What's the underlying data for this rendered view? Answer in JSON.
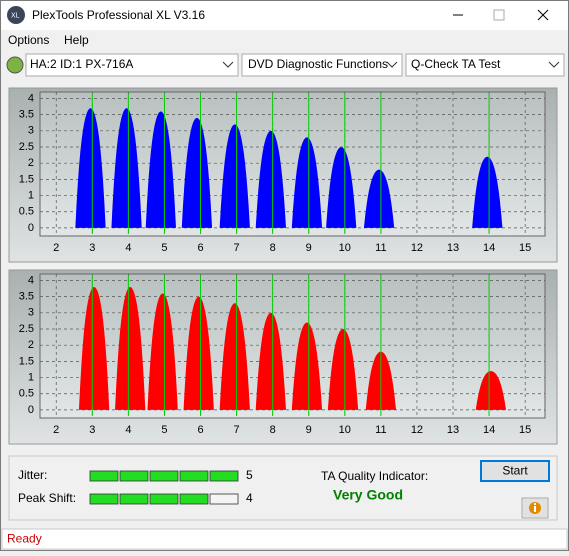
{
  "window": {
    "title": "PlexTools Professional XL V3.16"
  },
  "menu": [
    "Options",
    "Help"
  ],
  "toolbar": [
    "HA:2 ID:1  PX-716A",
    "DVD Diagnostic Functions",
    "Q-Check TA Test"
  ],
  "chart_data": [
    {
      "type": "bar",
      "color": "#0000ff",
      "x": [
        2.95,
        3.95,
        4.9,
        5.9,
        6.95,
        7.95,
        8.95,
        9.9,
        10.95,
        13.95
      ],
      "values": [
        3.7,
        3.7,
        3.6,
        3.4,
        3.2,
        3.0,
        2.8,
        2.5,
        1.8,
        2.2
      ],
      "markers": [
        3,
        4,
        5,
        6,
        7,
        8,
        9,
        10,
        11,
        14
      ],
      "marker_color": "#00d000",
      "xlim": [
        1.55,
        15.55
      ],
      "ylim": [
        -0.25,
        4.2
      ],
      "xticks": [
        2,
        3,
        4,
        5,
        6,
        7,
        8,
        9,
        10,
        11,
        12,
        13,
        14,
        15
      ],
      "yticks": [
        0,
        0.5,
        1,
        1.5,
        2,
        2.5,
        3,
        3.5,
        4
      ],
      "grid": true
    },
    {
      "type": "bar",
      "color": "#ff0000",
      "x": [
        3.05,
        4.05,
        4.95,
        5.95,
        6.95,
        7.95,
        8.95,
        9.95,
        11.0,
        14.05
      ],
      "values": [
        3.8,
        3.8,
        3.6,
        3.5,
        3.3,
        3.0,
        2.7,
        2.5,
        1.8,
        1.2
      ],
      "markers": [
        3,
        4,
        5,
        6,
        7,
        8,
        9,
        10,
        11,
        14
      ],
      "marker_color": "#00d000",
      "xlim": [
        1.55,
        15.55
      ],
      "ylim": [
        -0.25,
        4.2
      ],
      "xticks": [
        2,
        3,
        4,
        5,
        6,
        7,
        8,
        9,
        10,
        11,
        12,
        13,
        14,
        15
      ],
      "yticks": [
        0,
        0.5,
        1,
        1.5,
        2,
        2.5,
        3,
        3.5,
        4
      ],
      "grid": true
    }
  ],
  "meters": [
    {
      "label": "Jitter:",
      "value": 5
    },
    {
      "label": "Peak Shift:",
      "value": 4
    }
  ],
  "quality": {
    "label": "TA Quality Indicator:",
    "value": "Very Good"
  },
  "start": "Start",
  "status": "Ready"
}
